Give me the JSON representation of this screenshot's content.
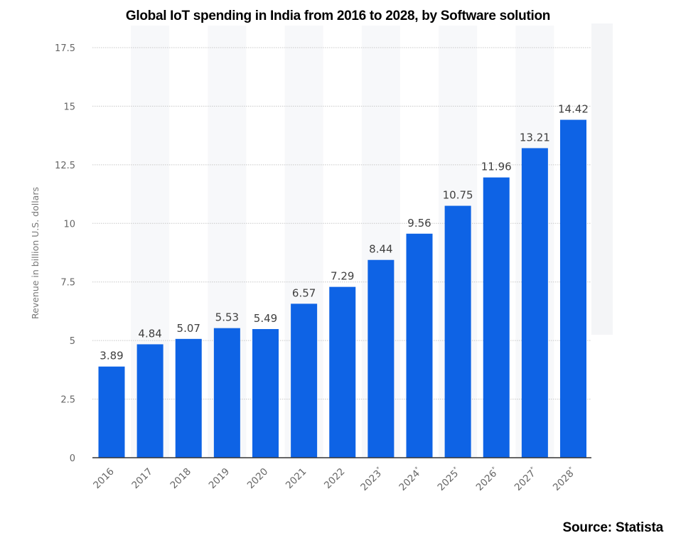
{
  "colors": {
    "bar": "#0E63E5",
    "grid": "#c8c8c8",
    "axis": "#333333",
    "band": "#f7f8fa"
  },
  "chart_data": {
    "type": "bar",
    "title": "Global IoT spending in India from 2016 to 2028, by Software solution",
    "categories": [
      "2016",
      "2017",
      "2018",
      "2019",
      "2020",
      "2021",
      "2022",
      "2023*",
      "2024*",
      "2025*",
      "2026*",
      "2027*",
      "2028*"
    ],
    "values": [
      3.89,
      4.84,
      5.07,
      5.53,
      5.49,
      6.57,
      7.29,
      8.44,
      9.56,
      10.75,
      11.96,
      13.21,
      14.42
    ],
    "value_labels": [
      "3.89",
      "4.84",
      "5.07",
      "5.53",
      "5.49",
      "6.57",
      "7.29",
      "8.44",
      "9.56",
      "10.75",
      "11.96",
      "13.21",
      "14.42"
    ],
    "xlabel": "",
    "ylabel": "Revenue in billion U.S. dollars",
    "ylim": [
      0,
      17.5
    ],
    "yticks": [
      0,
      2.5,
      5,
      7.5,
      10,
      12.5,
      15,
      17.5
    ],
    "ytick_labels": [
      "0",
      "2.5",
      "5",
      "7.5",
      "10",
      "12.5",
      "15",
      "17.5"
    ],
    "grid": true,
    "legend": "none",
    "source": "Source: Statista"
  }
}
